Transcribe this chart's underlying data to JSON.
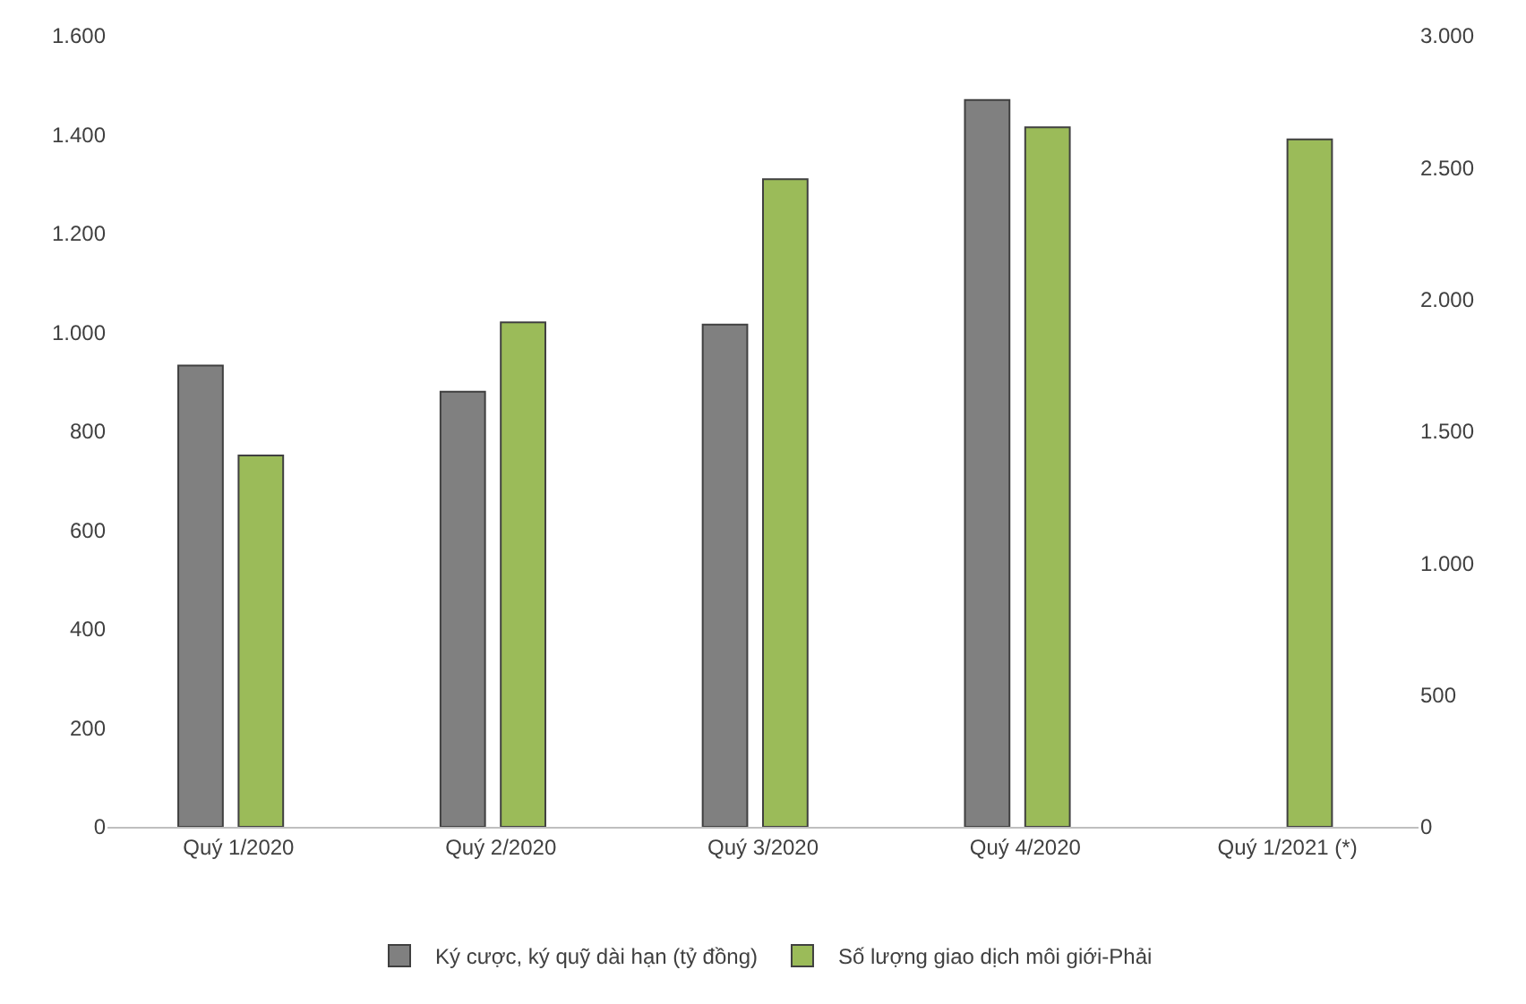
{
  "chart_data": {
    "type": "bar",
    "categories": [
      "Quý 1/2020",
      "Quý 2/2020",
      "Quý 3/2020",
      "Quý 4/2020",
      "Quý 1/2021 (*)"
    ],
    "series": [
      {
        "name": "Ký cược, ký quỹ dài hạn (tỷ đồng)",
        "color": "#808080",
        "values": [
          933,
          880,
          1016,
          1470,
          null
        ]
      },
      {
        "name": "Số lượng giao dịch môi giới-Phải",
        "color": "#9bbb59",
        "axis": "y2",
        "values": [
          1408,
          1913,
          2456,
          2653,
          2607
        ]
      }
    ],
    "ylim": [
      0,
      1600
    ],
    "yticks": [
      0,
      200,
      400,
      600,
      800,
      {
        "value": 1000,
        "label": "1.000"
      },
      {
        "value": 1200,
        "label": "1.200"
      },
      {
        "value": 1400,
        "label": "1.400"
      },
      {
        "value": 1600,
        "label": "1.600"
      }
    ],
    "y2lim": [
      0,
      3000
    ],
    "y2ticks": [
      0,
      500,
      {
        "value": 1000,
        "label": "1.000"
      },
      {
        "value": 1500,
        "label": "1.500"
      },
      {
        "value": 2000,
        "label": "2.000"
      },
      {
        "value": 2500,
        "label": "2.500"
      },
      {
        "value": 3000,
        "label": "3.000"
      }
    ],
    "legend": "bottom"
  }
}
